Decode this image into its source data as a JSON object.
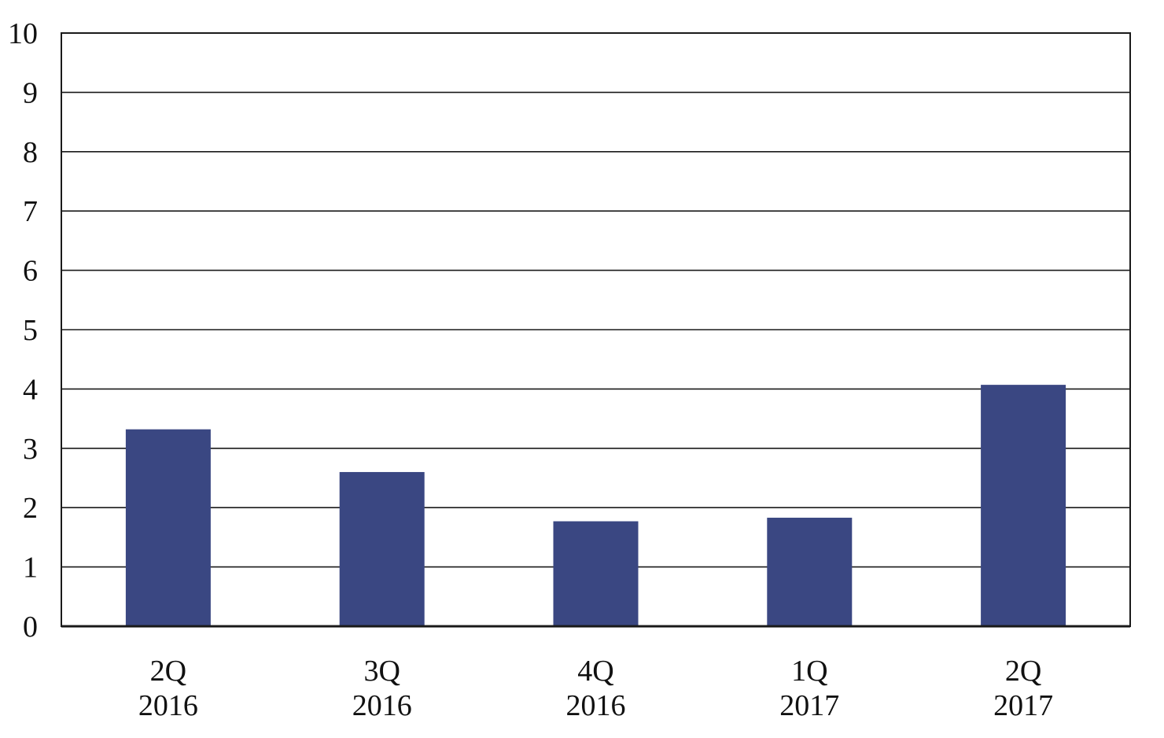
{
  "chart_data": {
    "type": "bar",
    "title": "",
    "xlabel": "",
    "ylabel": "",
    "categories": [
      [
        "2Q",
        "2016"
      ],
      [
        "3Q",
        "2016"
      ],
      [
        "4Q",
        "2016"
      ],
      [
        "1Q",
        "2017"
      ],
      [
        "2Q",
        "2017"
      ]
    ],
    "values": [
      3.32,
      2.6,
      1.77,
      1.83,
      4.07
    ],
    "ylim": [
      0,
      10
    ],
    "yticks": [
      "0",
      "1",
      "2",
      "3",
      "4",
      "5",
      "6",
      "7",
      "8",
      "9",
      "10"
    ],
    "grid": true,
    "legend": "none",
    "colors": {
      "bar": "#3a4782",
      "grid": "#1a1a1a",
      "axis": "#1a1a1a",
      "text": "#111111"
    }
  }
}
